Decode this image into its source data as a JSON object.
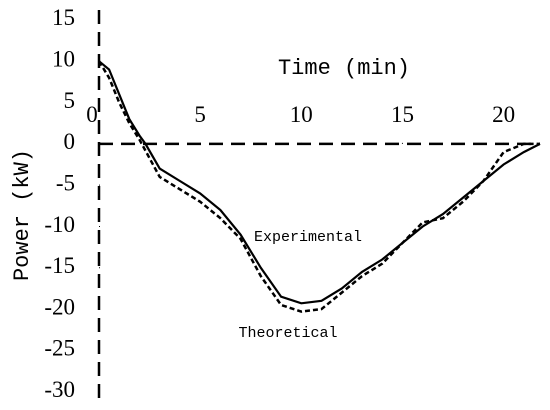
{
  "chart_data": {
    "type": "line",
    "x_label": "Time (min)",
    "y_label": "Power (kW)",
    "xlim": [
      0,
      21.8
    ],
    "ylim": [
      -31,
      16.2
    ],
    "xticks": [
      0,
      5,
      10,
      15,
      20
    ],
    "yticks": [
      -30,
      -25,
      -20,
      -15,
      -10,
      -5,
      0,
      5,
      10,
      15
    ],
    "series": [
      {
        "name": "Experimental",
        "color": "#000000",
        "dash": "solid",
        "x": [
          0,
          0.5,
          1,
          1.5,
          2,
          2.3,
          3,
          4,
          5,
          6,
          7,
          8,
          9,
          10,
          11,
          12,
          13,
          14,
          15,
          16,
          17,
          18,
          19,
          20,
          21,
          21.8
        ],
        "values": [
          10,
          9,
          6,
          3,
          1,
          0,
          -3,
          -4.5,
          -6,
          -8,
          -11,
          -15,
          -18.5,
          -19.3,
          -19,
          -17.5,
          -15.5,
          -14,
          -12,
          -10,
          -8.5,
          -6.5,
          -4.5,
          -2.5,
          -1,
          0
        ]
      },
      {
        "name": "Theoretical",
        "color": "#000000",
        "dash": "dashed",
        "x": [
          0,
          0.5,
          1,
          1.5,
          2,
          3,
          4,
          5,
          6,
          7,
          8,
          9,
          10,
          11,
          12,
          13,
          14,
          15,
          16,
          17,
          18,
          19,
          20,
          21,
          21.8
        ],
        "values": [
          10,
          8,
          5,
          2.5,
          0.5,
          -4,
          -5.5,
          -7,
          -9,
          -11.5,
          -16,
          -19.5,
          -20.3,
          -20,
          -18,
          -16,
          -14.5,
          -12,
          -9.5,
          -9,
          -7,
          -4.5,
          -1,
          0,
          0
        ]
      }
    ]
  }
}
